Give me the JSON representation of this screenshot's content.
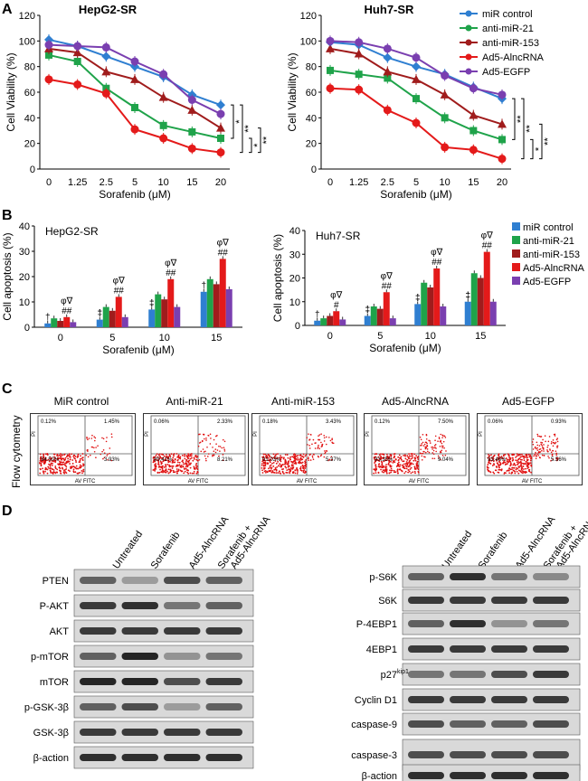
{
  "panel_letters": [
    "A",
    "B",
    "C",
    "D"
  ],
  "legend_series": [
    "miR control",
    "anti-miR-21",
    "anti-miR-153",
    "Ad5-AlncRNA",
    "Ad5-EGFP"
  ],
  "colors": {
    "miR control": "#2f7fd1",
    "anti-miR-21": "#1fa34a",
    "anti-miR-153": "#a01c1c",
    "Ad5-AlncRNA": "#e41a1a",
    "Ad5-EGFP": "#7a3fb0"
  },
  "chart_data": [
    {
      "type": "line",
      "title": "HepG2-SR",
      "xlabel": "Sorafenib (μM)",
      "ylabel": "Cell Viability (%)",
      "categories": [
        "0",
        "1.25",
        "2.5",
        "5",
        "10",
        "15",
        "20"
      ],
      "ylim": [
        0,
        120
      ],
      "yticks": [
        "0",
        "20",
        "40",
        "60",
        "80",
        "100",
        "120"
      ],
      "series": [
        {
          "name": "miR control",
          "values": [
            101,
            96,
            88,
            80,
            72,
            58,
            50
          ]
        },
        {
          "name": "anti-miR-21",
          "values": [
            89,
            84,
            63,
            48,
            34,
            29,
            24
          ]
        },
        {
          "name": "anti-miR-153",
          "values": [
            94,
            91,
            76,
            70,
            56,
            46,
            32
          ]
        },
        {
          "name": "Ad5-AlncRNA",
          "values": [
            70,
            66,
            59,
            31,
            24,
            16,
            13
          ]
        },
        {
          "name": "Ad5-EGFP",
          "values": [
            97,
            96,
            95,
            84,
            74,
            54,
            43
          ]
        }
      ],
      "significance": [
        "*",
        "**",
        "*",
        "**"
      ]
    },
    {
      "type": "line",
      "title": "Huh7-SR",
      "xlabel": "Sorafenib (μM)",
      "ylabel": "Cell Viability (%)",
      "categories": [
        "0",
        "1.25",
        "2.5",
        "5",
        "10",
        "15",
        "20"
      ],
      "ylim": [
        0,
        120
      ],
      "yticks": [
        "0",
        "20",
        "40",
        "60",
        "80",
        "100",
        "120"
      ],
      "series": [
        {
          "name": "miR control",
          "values": [
            99,
            97,
            87,
            80,
            74,
            64,
            55
          ]
        },
        {
          "name": "anti-miR-21",
          "values": [
            77,
            74,
            71,
            55,
            40,
            30,
            23
          ]
        },
        {
          "name": "anti-miR-153",
          "values": [
            94,
            90,
            76,
            70,
            58,
            42,
            35
          ]
        },
        {
          "name": "Ad5-AlncRNA",
          "values": [
            63,
            62,
            46,
            36,
            17,
            15,
            8
          ]
        },
        {
          "name": "Ad5-EGFP",
          "values": [
            100,
            99,
            94,
            87,
            73,
            63,
            58
          ]
        }
      ],
      "significance": [
        "**",
        "**",
        "*",
        "**"
      ]
    },
    {
      "type": "bar",
      "title": "HepG2-SR",
      "xlabel": "Sorafenib (μM)",
      "ylabel": "Cell apoptosis (%)",
      "categories": [
        "0",
        "5",
        "10",
        "15"
      ],
      "ylim": [
        0,
        40
      ],
      "yticks": [
        "0",
        "10",
        "20",
        "30",
        "40"
      ],
      "series": [
        {
          "name": "miR control",
          "values": [
            1.5,
            3,
            7,
            14
          ]
        },
        {
          "name": "anti-miR-21",
          "values": [
            3.5,
            8,
            13,
            19
          ]
        },
        {
          "name": "anti-miR-153",
          "values": [
            2.5,
            6.5,
            11,
            17
          ]
        },
        {
          "name": "Ad5-AlncRNA",
          "values": [
            4,
            12,
            19,
            27
          ]
        },
        {
          "name": "Ad5-EGFP",
          "values": [
            2,
            4,
            8,
            15
          ]
        }
      ],
      "annotations": [
        "†",
        "φ∇",
        "##",
        "‡",
        "†",
        "φ∇",
        "##",
        "‡",
        "‡",
        "φ∇",
        "##",
        "†",
        "φ∇",
        "##"
      ]
    },
    {
      "type": "bar",
      "title": "Huh7-SR",
      "xlabel": "Sorafenib (μM)",
      "ylabel": "Cell apoptosis (%)",
      "categories": [
        "0",
        "5",
        "10",
        "15"
      ],
      "ylim": [
        0,
        40
      ],
      "yticks": [
        "0",
        "10",
        "20",
        "30",
        "40"
      ],
      "series": [
        {
          "name": "miR control",
          "values": [
            2,
            4,
            9,
            10
          ]
        },
        {
          "name": "anti-miR-21",
          "values": [
            3,
            8,
            18,
            22
          ]
        },
        {
          "name": "anti-miR-153",
          "values": [
            4,
            7,
            16,
            20
          ]
        },
        {
          "name": "Ad5-AlncRNA",
          "values": [
            6,
            14,
            24,
            31
          ]
        },
        {
          "name": "Ad5-EGFP",
          "values": [
            2.5,
            3,
            8,
            10
          ]
        }
      ],
      "annotations": [
        "†",
        "φ∇",
        "#",
        "‡",
        "‡",
        "φ∇",
        "##",
        "‡",
        "‡",
        "φ∇",
        "##",
        "‡",
        "‡",
        "φ∇",
        "##"
      ]
    }
  ],
  "flow": {
    "ylabel": "Flow cytometry",
    "axis_x": "AV FITC",
    "axis_y": "PI",
    "panels": [
      {
        "title": "MiR control",
        "q": [
          "0.12%",
          "1.45%",
          "94.50%",
          "3.93%"
        ]
      },
      {
        "title": "Anti-miR-21",
        "q": [
          "0.06%",
          "2.33%",
          "89.41%",
          "8.21%"
        ]
      },
      {
        "title": "Anti-miR-153",
        "q": [
          "0.18%",
          "3.43%",
          "91.03%",
          "5.37%"
        ]
      },
      {
        "title": "Ad5-AlncRNA",
        "q": [
          "0.12%",
          "7.50%",
          "93.35%",
          "9.04%"
        ]
      },
      {
        "title": "Ad5-EGFP",
        "q": [
          "0.06%",
          "0.93%",
          "93.46%",
          "5.56%"
        ]
      }
    ]
  },
  "western": {
    "lanes": [
      "Untreated",
      "Sorafenib",
      "Ad5-AlncRNA",
      "Sorafenib +",
      "Ad5-AlncRNA"
    ],
    "left_labels": [
      "PTEN",
      "P-AKT",
      "AKT",
      "p-mTOR",
      "mTOR",
      "p-GSK-3β",
      "GSK-3β",
      "β-action"
    ],
    "right_labels": [
      "p-S6K",
      "S6K",
      "P-4EBP1",
      "4EBP1",
      "p27",
      "kip1",
      "Cyclin D1",
      "caspase-9",
      "caspase-3",
      "β-action"
    ]
  }
}
